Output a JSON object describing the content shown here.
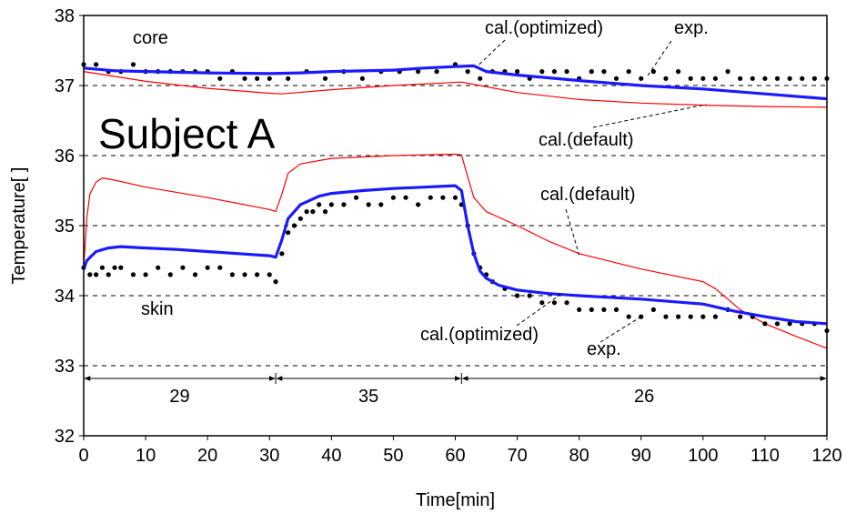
{
  "chart_data": {
    "type": "line",
    "xlabel": "Time[min]",
    "ylabel": "Temperature[   ]",
    "xlim": [
      0,
      120
    ],
    "ylim": [
      32,
      38
    ],
    "xticks": [
      0,
      10,
      20,
      30,
      40,
      50,
      60,
      70,
      80,
      90,
      100,
      110,
      120
    ],
    "yticks": [
      32,
      33,
      34,
      35,
      36,
      37,
      38
    ],
    "grid": "dashed horizontal at 33, 34, 35, 36, 37",
    "colors": {
      "optimized": "#1a1aff",
      "default": "#ff0000",
      "exp": "#000000"
    },
    "labels": {
      "subject": "Subject A",
      "core": "core",
      "skin": "skin",
      "cal_optimized_top": "cal.(optimized)",
      "exp_top": "exp.",
      "cal_default_top": "cal.(default)",
      "cal_default_skin": "cal.(default)",
      "cal_optimized_skin": "cal.(optimized)",
      "exp_skin": "exp."
    },
    "intervals": [
      {
        "from": 0,
        "to": 31,
        "label": "29"
      },
      {
        "from": 31,
        "to": 61,
        "label": "35"
      },
      {
        "from": 61,
        "to": 120,
        "label": "26"
      }
    ],
    "series": [
      {
        "name": "cal.(optimized)",
        "group": "core",
        "style": "blue-thick",
        "x": [
          0,
          5,
          10,
          20,
          30,
          35,
          40,
          50,
          55,
          60,
          63,
          65,
          70,
          80,
          90,
          100,
          110,
          120
        ],
        "y": [
          37.25,
          37.21,
          37.2,
          37.18,
          37.17,
          37.18,
          37.2,
          37.22,
          37.25,
          37.27,
          37.28,
          37.2,
          37.15,
          37.07,
          37.0,
          36.95,
          36.88,
          36.81
        ]
      },
      {
        "name": "cal.(default)",
        "group": "core",
        "style": "red-thin",
        "x": [
          0,
          5,
          10,
          20,
          30,
          32,
          40,
          50,
          61,
          70,
          80,
          90,
          100,
          110,
          120
        ],
        "y": [
          37.2,
          37.13,
          37.06,
          36.96,
          36.89,
          36.88,
          36.94,
          37.0,
          37.05,
          36.9,
          36.8,
          36.75,
          36.72,
          36.7,
          36.69
        ]
      },
      {
        "name": "cal.(optimized)",
        "group": "skin",
        "style": "blue-thick",
        "x": [
          0,
          0.5,
          2,
          4,
          6,
          10,
          15,
          20,
          25,
          30,
          31,
          32,
          33,
          35,
          38,
          40,
          45,
          50,
          55,
          60,
          61,
          62,
          63,
          64,
          65,
          67,
          70,
          75,
          80,
          90,
          100,
          105,
          110,
          115,
          120
        ],
        "y": [
          34.38,
          34.5,
          34.63,
          34.68,
          34.7,
          34.68,
          34.66,
          34.63,
          34.6,
          34.57,
          34.55,
          34.8,
          35.1,
          35.3,
          35.42,
          35.46,
          35.5,
          35.53,
          35.55,
          35.57,
          35.5,
          35.0,
          34.6,
          34.35,
          34.25,
          34.15,
          34.08,
          34.03,
          34.0,
          33.95,
          33.88,
          33.78,
          33.7,
          33.63,
          33.6
        ]
      },
      {
        "name": "cal.(default)",
        "group": "skin",
        "style": "red-thin",
        "x": [
          0,
          0.5,
          1,
          2,
          3,
          5,
          10,
          20,
          30,
          31,
          32,
          33,
          35,
          40,
          50,
          60,
          61,
          62,
          63,
          65,
          70,
          75,
          80,
          90,
          100,
          102,
          104,
          106,
          110,
          115,
          120
        ],
        "y": [
          34.4,
          35.1,
          35.45,
          35.62,
          35.68,
          35.65,
          35.55,
          35.4,
          35.23,
          35.2,
          35.45,
          35.75,
          35.88,
          35.96,
          36.0,
          36.02,
          36.01,
          35.7,
          35.4,
          35.2,
          35.0,
          34.78,
          34.6,
          34.38,
          34.2,
          34.1,
          33.95,
          33.8,
          33.6,
          33.42,
          33.25
        ]
      },
      {
        "name": "exp.",
        "group": "core",
        "style": "dots",
        "x": [
          0,
          2,
          4,
          6,
          8,
          10,
          12,
          14,
          16,
          18,
          20,
          22,
          24,
          26,
          28,
          30,
          33,
          36,
          39,
          42,
          45,
          48,
          51,
          54,
          57,
          60,
          62,
          64,
          66,
          68,
          70,
          72,
          74,
          76,
          78,
          80,
          82,
          84,
          86,
          88,
          90,
          92,
          94,
          96,
          98,
          100,
          102,
          104,
          106,
          108,
          110,
          112,
          114,
          116,
          118,
          120
        ],
        "y": [
          37.3,
          37.3,
          37.2,
          37.2,
          37.3,
          37.2,
          37.2,
          37.2,
          37.2,
          37.2,
          37.2,
          37.1,
          37.2,
          37.1,
          37.1,
          37.1,
          37.1,
          37.2,
          37.1,
          37.2,
          37.1,
          37.2,
          37.2,
          37.2,
          37.2,
          37.3,
          37.2,
          37.1,
          37.2,
          37.2,
          37.2,
          37.1,
          37.2,
          37.2,
          37.2,
          37.1,
          37.2,
          37.2,
          37.1,
          37.2,
          37.1,
          37.2,
          37.1,
          37.2,
          37.1,
          37.1,
          37.1,
          37.2,
          37.1,
          37.1,
          37.1,
          37.1,
          37.1,
          37.1,
          37.1,
          37.1
        ]
      },
      {
        "name": "exp.",
        "group": "skin",
        "style": "dots",
        "x": [
          0,
          1,
          2,
          3,
          4,
          5,
          6,
          8,
          10,
          12,
          14,
          16,
          18,
          20,
          22,
          24,
          26,
          28,
          30,
          31,
          32,
          33,
          34,
          35,
          36,
          37,
          38,
          39,
          40,
          42,
          44,
          46,
          48,
          50,
          52,
          54,
          56,
          58,
          60,
          61,
          62,
          63,
          64,
          65,
          66,
          68,
          70,
          72,
          74,
          76,
          78,
          80,
          82,
          84,
          86,
          88,
          90,
          92,
          94,
          96,
          98,
          100,
          102,
          104,
          106,
          108,
          110,
          112,
          114,
          116,
          118,
          120
        ],
        "y": [
          34.4,
          34.3,
          34.3,
          34.4,
          34.3,
          34.4,
          34.4,
          34.3,
          34.3,
          34.4,
          34.3,
          34.4,
          34.3,
          34.4,
          34.4,
          34.3,
          34.3,
          34.3,
          34.3,
          34.2,
          34.6,
          34.9,
          35.0,
          35.1,
          35.2,
          35.2,
          35.3,
          35.2,
          35.3,
          35.3,
          35.4,
          35.3,
          35.3,
          35.4,
          35.4,
          35.3,
          35.4,
          35.4,
          35.4,
          35.3,
          35.0,
          34.6,
          34.4,
          34.3,
          34.2,
          34.1,
          34.0,
          34.0,
          33.9,
          33.9,
          33.9,
          33.8,
          33.8,
          33.8,
          33.8,
          33.7,
          33.7,
          33.8,
          33.7,
          33.7,
          33.7,
          33.7,
          33.7,
          33.8,
          33.7,
          33.7,
          33.6,
          33.6,
          33.6,
          33.6,
          33.6,
          33.5
        ]
      }
    ]
  }
}
